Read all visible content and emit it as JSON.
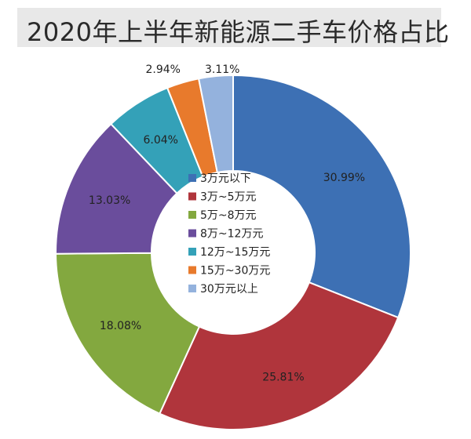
{
  "chart_data": {
    "type": "pie",
    "title": "2020年上半年新能源二手车价格占比",
    "categories": [
      "3万元以下",
      "3万~5万元",
      "5万~8万元",
      "8万~12万元",
      "12万~15万元",
      "15万~30万元",
      "30万元以上"
    ],
    "values": [
      30.99,
      25.81,
      18.08,
      13.03,
      6.04,
      2.94,
      3.11
    ],
    "value_labels": [
      "30.99%",
      "25.81%",
      "18.08%",
      "13.03%",
      "6.04%",
      "2.94%",
      "3.11%"
    ],
    "colors": [
      "#3d70b4",
      "#b0353c",
      "#83a83f",
      "#6a4d9c",
      "#34a1b8",
      "#e87a2c",
      "#94b2dd"
    ],
    "style": "donut",
    "legend_position": "center"
  }
}
